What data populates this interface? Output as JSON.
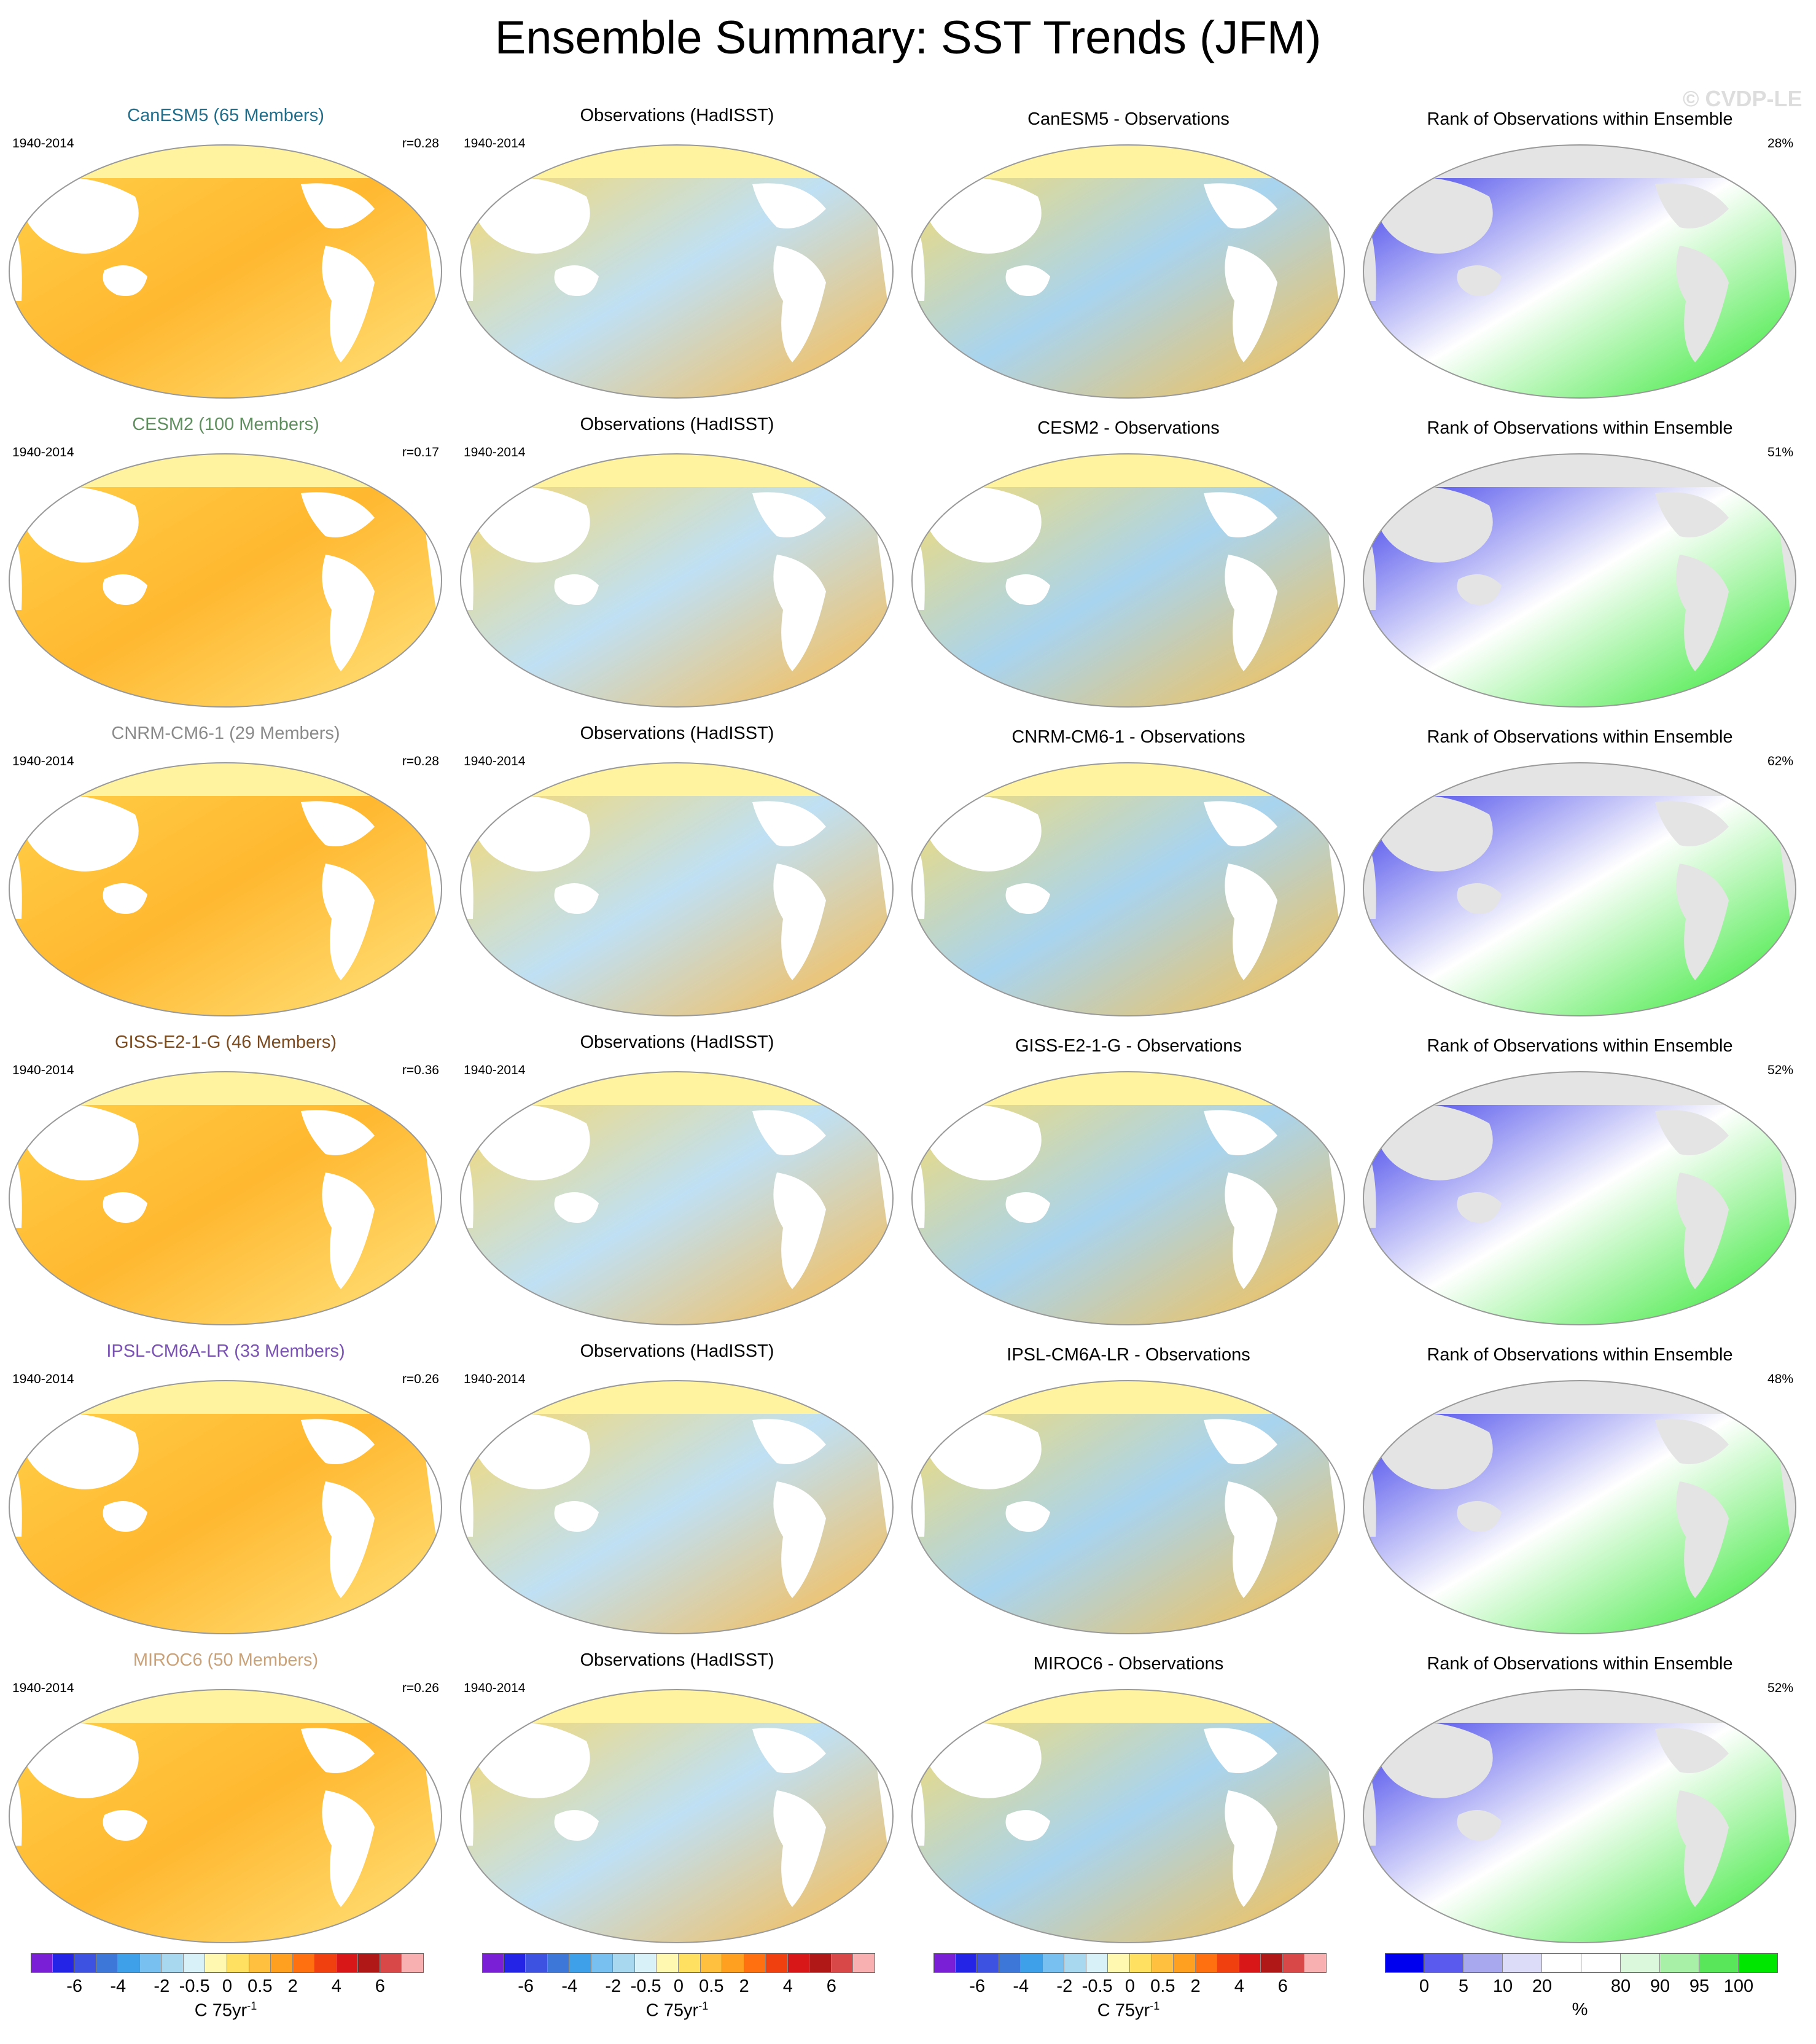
{
  "title": "Ensemble Summary: SST Trends (JFM)",
  "watermark": "© CVDP-LE",
  "period": "1940-2014",
  "obs_title": "Observations (HadISST)",
  "rank_title": "Rank of Observations within Ensemble",
  "rows": [
    {
      "model_title": "CanESM5 (65 Members)",
      "model_color": "#1f6e8c",
      "r": "r=0.28",
      "diff_title": "CanESM5 - Observations",
      "rank_pct": "28%"
    },
    {
      "model_title": "CESM2 (100 Members)",
      "model_color": "#5f8f5f",
      "r": "r=0.17",
      "diff_title": "CESM2 - Observations",
      "rank_pct": "51%"
    },
    {
      "model_title": "CNRM-CM6-1 (29 Members)",
      "model_color": "#8a8a8a",
      "r": "r=0.28",
      "diff_title": "CNRM-CM6-1 - Observations",
      "rank_pct": "62%"
    },
    {
      "model_title": "GISS-E2-1-G (46 Members)",
      "model_color": "#7b4a1e",
      "r": "r=0.36",
      "diff_title": "GISS-E2-1-G - Observations",
      "rank_pct": "52%"
    },
    {
      "model_title": "IPSL-CM6A-LR (33 Members)",
      "model_color": "#7a52b3",
      "r": "r=0.26",
      "diff_title": "IPSL-CM6A-LR - Observations",
      "rank_pct": "48%"
    },
    {
      "model_title": "MIROC6 (50 Members)",
      "model_color": "#c9a27a",
      "r": "r=0.26",
      "diff_title": "MIROC6 - Observations",
      "rank_pct": "52%"
    }
  ],
  "chart_data": [
    {
      "type": "heatmap",
      "description_panels": "trend colorbar",
      "colorbar_colors": [
        "#7a1fd6",
        "#2424e6",
        "#3d52e0",
        "#3d78d8",
        "#3da0e8",
        "#78c0f0",
        "#a8d8f0",
        "#d8f0f8",
        "#fff8b0",
        "#ffe060",
        "#ffc040",
        "#ffa020",
        "#ff7010",
        "#f04010",
        "#d81818",
        "#b01818",
        "#d84848",
        "#f8b0b0"
      ],
      "ticks": [
        "-6",
        "-4",
        "-2",
        "-0.5",
        "0",
        "0.5",
        "2",
        "4",
        "6"
      ],
      "unit": "C 75yr",
      "unit_sup": "-1"
    },
    {
      "type": "heatmap",
      "description_panels": "rank colorbar",
      "colorbar_colors": [
        "#0000ee",
        "#5a5aee",
        "#a8a8ee",
        "#dcdcf8",
        "#ffffff",
        "#ffffff",
        "#dcf8dc",
        "#a8f0a8",
        "#5ae65a",
        "#00e600"
      ],
      "ticks": [
        "0",
        "5",
        "10",
        "20",
        "80",
        "90",
        "95",
        "100"
      ],
      "unit": "%"
    }
  ]
}
